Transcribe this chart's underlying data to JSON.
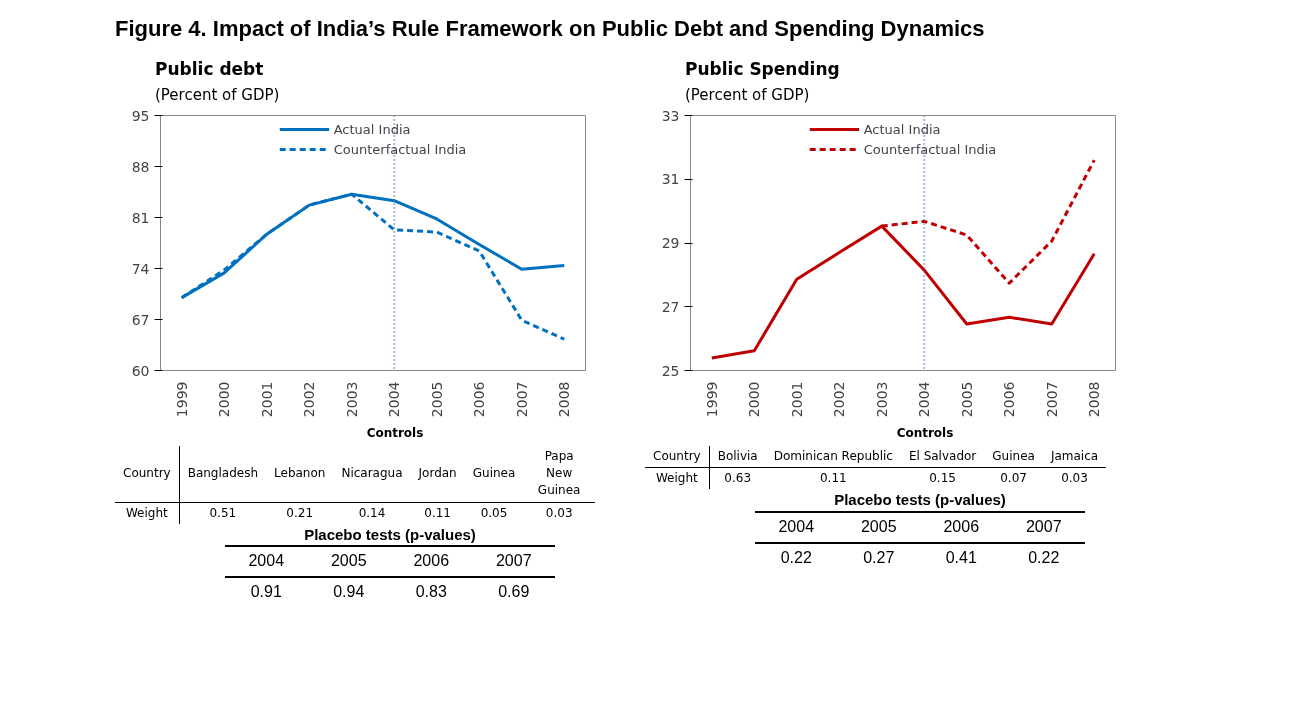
{
  "chart_data": [
    {
      "type": "line",
      "title": "Figure 4. Impact of India’s Rule Framework on Public Debt and Spending Dynamics",
      "subtitle": "Public debt",
      "ylabel": "(Percent of GDP)",
      "categories": [
        "1999",
        "2000",
        "2001",
        "2002",
        "2003",
        "2004",
        "2005",
        "2006",
        "2007",
        "2008"
      ],
      "series": [
        {
          "name": "Actual India",
          "color": "#0070c0",
          "line_style": "solid",
          "values": [
            70.0,
            73.4,
            78.7,
            82.7,
            84.2,
            83.3,
            80.8,
            77.3,
            73.9,
            74.4
          ]
        },
        {
          "name": "Counterfactual India",
          "color": "#0070c0",
          "line_style": "dashed",
          "values": [
            70.0,
            73.8,
            78.7,
            82.7,
            84.2,
            79.3,
            79.0,
            76.4,
            66.9,
            64.3
          ]
        }
      ],
      "ylim": [
        60,
        95
      ],
      "yticks": [
        60,
        67,
        74,
        81,
        88,
        95
      ],
      "grid": false,
      "legend": "top",
      "marker": "none",
      "ref_lines": [
        {
          "axis": "x",
          "value": "2004",
          "color": "#4472c4",
          "line_style": "dotted"
        }
      ],
      "annotations": [
        "Controls",
        "Country",
        "Bangladesh",
        "Lebanon",
        "Nicaragua",
        "Jordan",
        "Guinea",
        "Papa New Guinea",
        "Weight",
        "0.51",
        "0.21",
        "0.14",
        "0.11",
        "0.05",
        "0.03",
        "Placebo tests (p-values)",
        "2004",
        "2005",
        "2006",
        "2007",
        "0.91",
        "0.94",
        "0.83",
        "0.69"
      ]
    },
    {
      "type": "line",
      "subtitle": "Public Spending",
      "ylabel": "(Percent of GDP)",
      "categories": [
        "1999",
        "2000",
        "2001",
        "2002",
        "2003",
        "2004",
        "2005",
        "2006",
        "2007",
        "2008"
      ],
      "series": [
        {
          "name": "Actual India",
          "color": "#c00000",
          "line_style": "solid",
          "values": [
            25.39,
            25.62,
            27.86,
            28.7,
            29.53,
            28.15,
            26.46,
            26.67,
            26.46,
            28.66
          ]
        },
        {
          "name": "Counterfactual India",
          "color": "#c00000",
          "line_style": "dashed",
          "values": [
            null,
            null,
            null,
            null,
            29.53,
            29.68,
            29.25,
            27.74,
            29.06,
            31.6
          ]
        }
      ],
      "ylim": [
        25,
        33
      ],
      "yticks": [
        25,
        27,
        29,
        31,
        33
      ],
      "grid": false,
      "legend": "top",
      "marker": "none",
      "ref_lines": [
        {
          "axis": "x",
          "value": "2004",
          "color": "#4472c4",
          "line_style": "dotted"
        }
      ],
      "annotations": [
        "Controls",
        "Country",
        "Bolivia",
        "Dominican Republic",
        "El Salvador",
        "Guinea",
        "Jamaica",
        "Weight",
        "0.63",
        "0.11",
        "0.15",
        "0.07",
        "0.03",
        "Placebo tests (p-values)",
        "2004",
        "2005",
        "2006",
        "2007",
        "0.22",
        "0.27",
        "0.41",
        "0.22"
      ]
    }
  ]
}
